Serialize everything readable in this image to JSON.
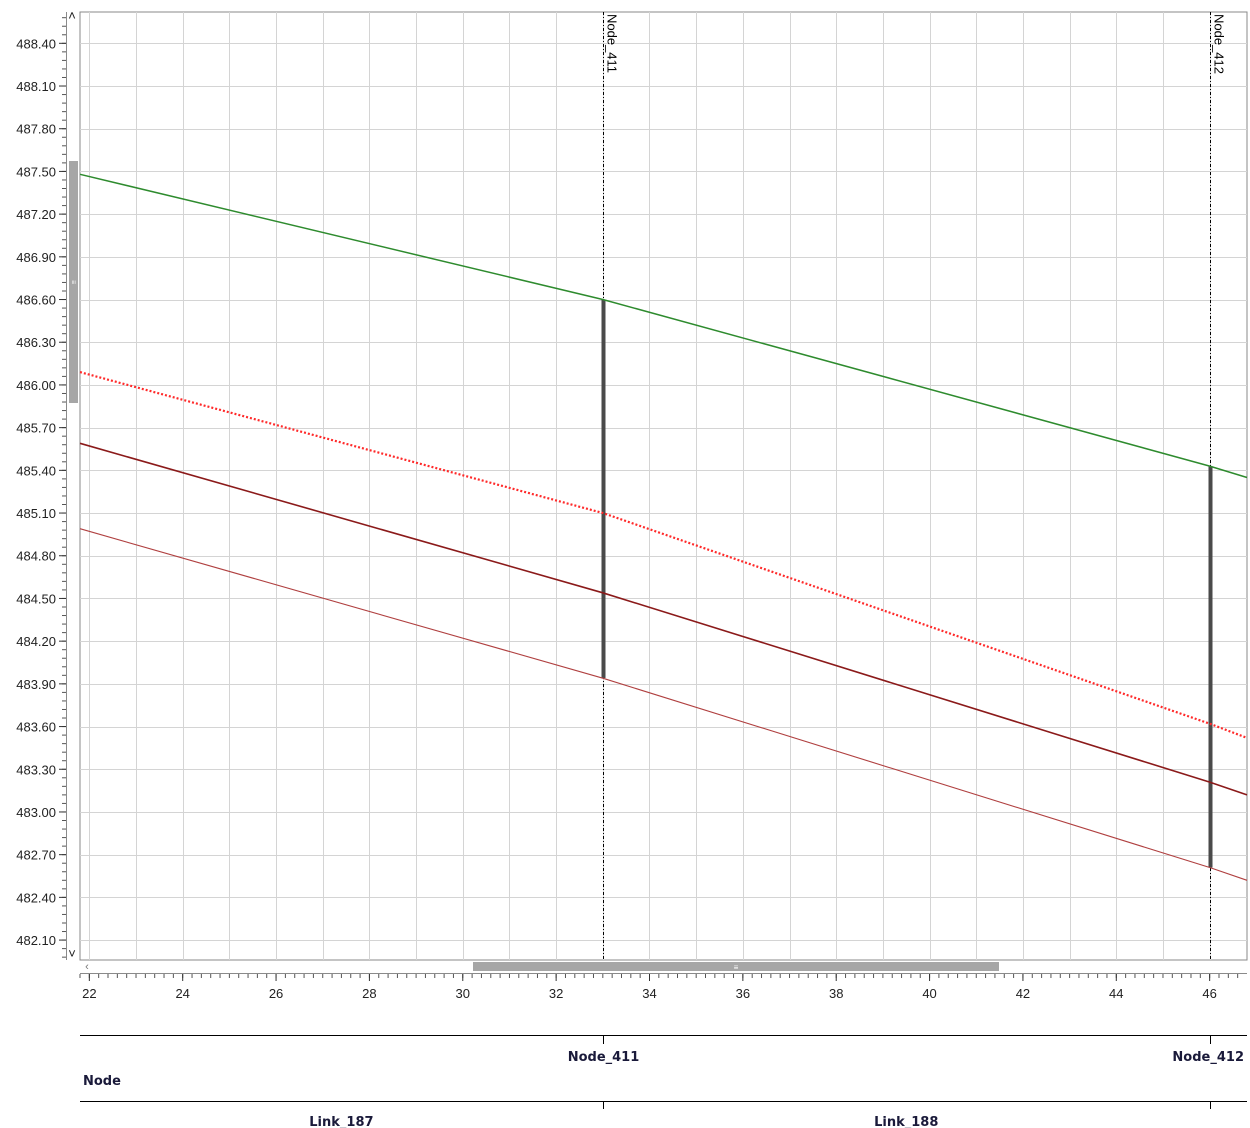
{
  "chart_data": {
    "type": "line",
    "title": "",
    "xlabel": "",
    "ylabel": "",
    "xlim": [
      21.8,
      46.8
    ],
    "ylim": [
      481.96,
      488.62
    ],
    "x_ticks": [
      22,
      24,
      26,
      28,
      30,
      32,
      34,
      36,
      38,
      40,
      42,
      44,
      46
    ],
    "y_ticks": [
      482.1,
      482.4,
      482.7,
      483.0,
      483.3,
      483.6,
      483.9,
      484.2,
      484.5,
      484.8,
      485.1,
      485.4,
      485.7,
      486.0,
      486.3,
      486.6,
      486.9,
      487.2,
      487.5,
      487.8,
      488.1,
      488.4
    ],
    "grid": true,
    "series": [
      {
        "color": "#2e8b2e",
        "style": "solid",
        "width": 1.5,
        "x": [
          21.8,
          33.0,
          46.0,
          46.8
        ],
        "y": [
          487.48,
          486.6,
          485.43,
          485.35
        ]
      },
      {
        "color": "#ff2a2a",
        "style": "dotted",
        "width": 2.2,
        "x": [
          21.8,
          33.0,
          46.0,
          46.8
        ],
        "y": [
          486.09,
          485.1,
          483.62,
          483.52
        ]
      },
      {
        "color": "#8b1a1a",
        "style": "solid",
        "width": 1.6,
        "x": [
          21.8,
          33.0,
          46.0,
          46.8
        ],
        "y": [
          485.59,
          484.54,
          483.21,
          483.12
        ]
      },
      {
        "color": "#b04040",
        "style": "solid",
        "width": 1.1,
        "x": [
          21.8,
          33.0,
          46.0,
          46.8
        ],
        "y": [
          484.99,
          483.94,
          482.61,
          482.52
        ]
      }
    ],
    "nodes": [
      {
        "name": "Node_411",
        "x": 33.0,
        "y_bottom": 483.94,
        "y_top": 486.6
      },
      {
        "name": "Node_412",
        "x": 46.0,
        "y_bottom": 482.61,
        "y_top": 485.43
      }
    ],
    "links": [
      {
        "name": "Link_187",
        "x_from": 21.8,
        "x_to": 33.0
      },
      {
        "name": "Link_188",
        "x_from": 33.0,
        "x_to": 46.0
      }
    ]
  },
  "table": {
    "row_node_label": "Node",
    "node_labels": [
      "Node_411",
      "Node_412"
    ],
    "link_labels": [
      "Link_187",
      "Link_188"
    ]
  },
  "scrollbars": {
    "vertical": {
      "position": 0.28,
      "thumb_glyph": "≡"
    },
    "horizontal": {
      "position": 0.45,
      "thumb_glyph": "≡"
    }
  },
  "colors": {
    "grid": "#d4d4d4",
    "axis": "#8a8a8a",
    "scrollbar_thumb": "#a6a6a6"
  }
}
